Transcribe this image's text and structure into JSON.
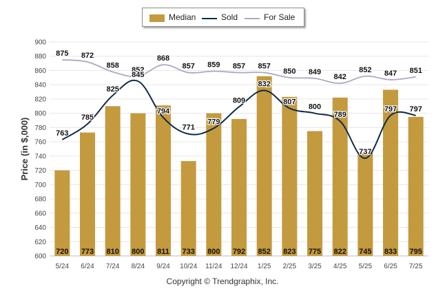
{
  "chart_data": {
    "type": "bar",
    "title": "",
    "ylabel": "Price (in $,000)",
    "xlabel": "",
    "ylim": [
      600,
      900
    ],
    "yticks": [
      600,
      620,
      640,
      660,
      680,
      700,
      720,
      740,
      760,
      780,
      800,
      820,
      840,
      860,
      880,
      900
    ],
    "grid": true,
    "legend_position": "top-center",
    "categories": [
      "5/24",
      "6/24",
      "7/24",
      "8/24",
      "9/24",
      "10/24",
      "11/24",
      "12/24",
      "1/25",
      "2/25",
      "3/25",
      "4/25",
      "5/25",
      "6/25",
      "7/25"
    ],
    "series": [
      {
        "name": "Median",
        "kind": "bar",
        "color": "#c49a3e",
        "values": [
          720,
          773,
          810,
          800,
          811,
          733,
          800,
          792,
          852,
          823,
          775,
          822,
          745,
          833,
          795
        ]
      },
      {
        "name": "Sold",
        "kind": "line",
        "color": "#0f2a4a",
        "values": [
          763,
          785,
          825,
          845,
          794,
          771,
          779,
          809,
          832,
          807,
          800,
          789,
          737,
          797,
          797
        ]
      },
      {
        "name": "For Sale",
        "kind": "line",
        "color": "#a6adbe",
        "values": [
          875,
          872,
          858,
          852,
          868,
          857,
          859,
          857,
          857,
          850,
          849,
          842,
          852,
          847,
          851
        ]
      }
    ]
  },
  "footer": {
    "copyright": "Copyright © Trendgraphix, Inc."
  }
}
